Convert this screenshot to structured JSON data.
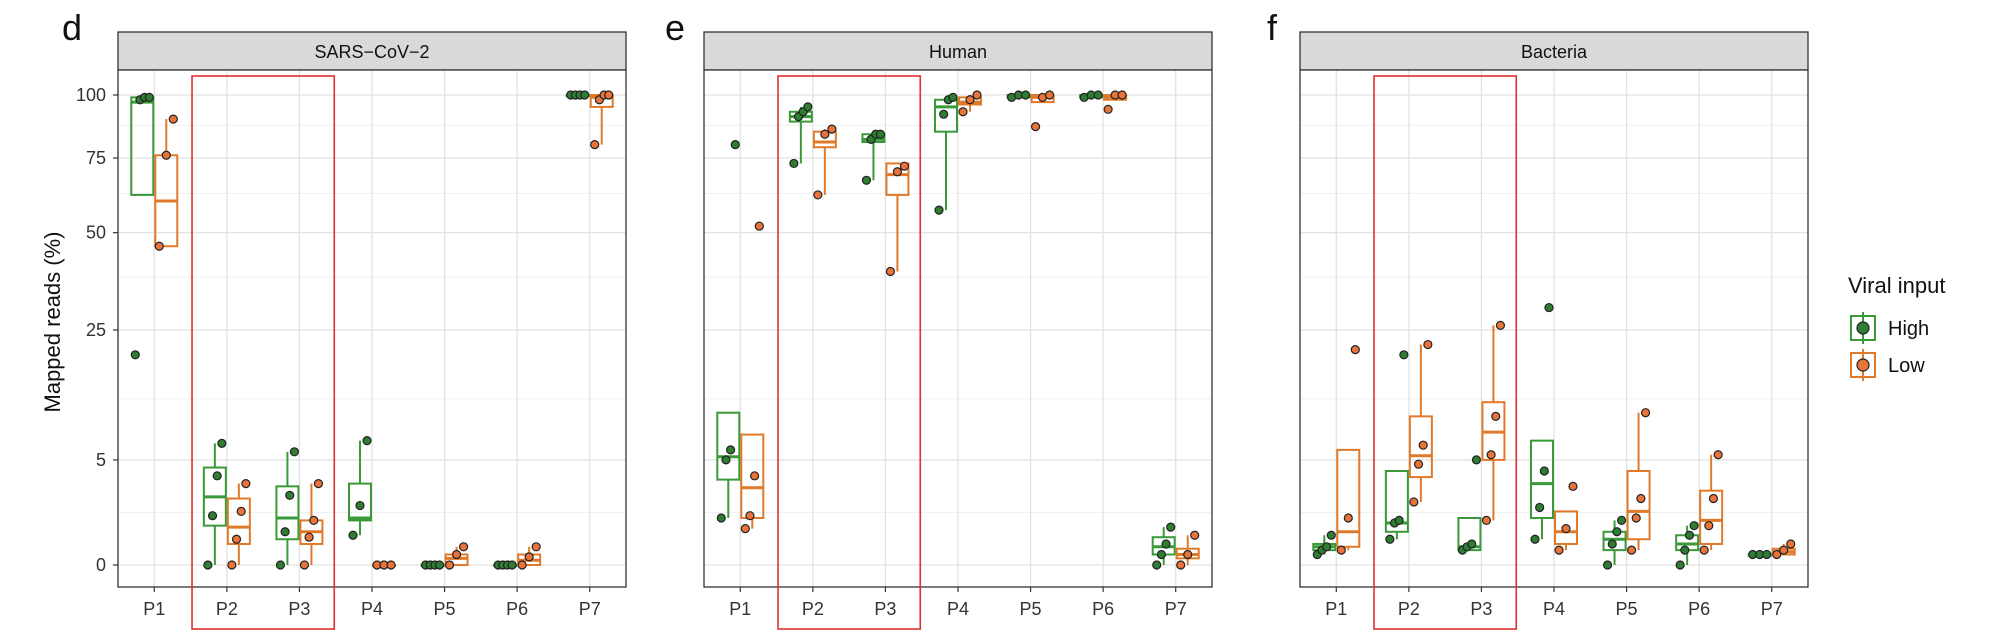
{
  "figure": {
    "ylabel": "Mapped reads (%)",
    "legend_title": "Viral input",
    "legend_placement": "right",
    "legend_items": [
      {
        "name": "High",
        "color": "#3a9a3a",
        "fill": "#2e7d32"
      },
      {
        "name": "Low",
        "color": "#e07a2a",
        "fill": "#e8743b"
      }
    ],
    "highlight_color": "#e03030",
    "highlight_categories": [
      "P2",
      "P3"
    ]
  },
  "chart_data": [
    {
      "type": "box",
      "panel_letter": "d",
      "title": "SARS−CoV−2",
      "categories": [
        "P1",
        "P2",
        "P3",
        "P4",
        "P5",
        "P6",
        "P7"
      ],
      "y_scale": "sqrt",
      "yticks": [
        0,
        5,
        25,
        50,
        75,
        100
      ],
      "ylim": [
        0,
        100
      ],
      "grid": true,
      "series": [
        {
          "name": "High",
          "boxes": [
            {
              "q1": 62,
              "median": 97,
              "q3": 99,
              "lo": 62,
              "hi": 99,
              "points": [
                20,
                98,
                99,
                99
              ]
            },
            {
              "q1": 0.7,
              "median": 2.1,
              "q3": 4.3,
              "lo": 0,
              "hi": 6.7,
              "points": [
                0,
                1.1,
                3.6,
                6.7
              ]
            },
            {
              "q1": 0.3,
              "median": 1.0,
              "q3": 2.8,
              "lo": 0,
              "hi": 5.8,
              "points": [
                0,
                0.5,
                2.2,
                5.8
              ]
            },
            {
              "q1": 0.9,
              "median": 1.0,
              "q3": 3.0,
              "lo": 0.4,
              "hi": 7.0,
              "points": [
                0.4,
                1.6,
                7.0
              ]
            },
            {
              "q1": 0,
              "median": 0,
              "q3": 0,
              "lo": 0,
              "hi": 0,
              "points": [
                0,
                0,
                0,
                0
              ]
            },
            {
              "q1": 0,
              "median": 0,
              "q3": 0,
              "lo": 0,
              "hi": 0,
              "points": [
                0,
                0,
                0,
                0
              ]
            },
            {
              "q1": 100,
              "median": 100,
              "q3": 100,
              "lo": 100,
              "hi": 100,
              "points": [
                100,
                100,
                100,
                100
              ]
            }
          ]
        },
        {
          "name": "Low",
          "boxes": [
            {
              "q1": 46,
              "median": 60,
              "q3": 76,
              "lo": 46,
              "hi": 90,
              "points": [
                46,
                76,
                90
              ]
            },
            {
              "q1": 0.2,
              "median": 0.65,
              "q3": 2.0,
              "lo": 0,
              "hi": 3.0,
              "points": [
                0,
                0.3,
                1.3,
                3.0
              ]
            },
            {
              "q1": 0.2,
              "median": 0.5,
              "q3": 0.9,
              "lo": 0,
              "hi": 3.0,
              "points": [
                0,
                0.35,
                0.9,
                3.0
              ]
            },
            {
              "q1": 0,
              "median": 0,
              "q3": 0,
              "lo": 0,
              "hi": 0,
              "points": [
                0,
                0,
                0
              ]
            },
            {
              "q1": 0,
              "median": 0.02,
              "q3": 0.05,
              "lo": 0,
              "hi": 0.15,
              "points": [
                0,
                0.05,
                0.15
              ]
            },
            {
              "q1": 0,
              "median": 0.01,
              "q3": 0.05,
              "lo": 0,
              "hi": 0.15,
              "points": [
                0,
                0.03,
                0.15
              ]
            },
            {
              "q1": 95,
              "median": 99,
              "q3": 100,
              "lo": 80,
              "hi": 100,
              "points": [
                80,
                98,
                100,
                100
              ]
            }
          ]
        }
      ]
    },
    {
      "type": "box",
      "panel_letter": "e",
      "title": "Human",
      "categories": [
        "P1",
        "P2",
        "P3",
        "P4",
        "P5",
        "P6",
        "P7"
      ],
      "y_scale": "sqrt",
      "yticks": [],
      "ylim": [
        0,
        100
      ],
      "grid": true,
      "series": [
        {
          "name": "High",
          "boxes": [
            {
              "q1": 3.3,
              "median": 5.3,
              "q3": 10.5,
              "lo": 1.0,
              "hi": 10.5,
              "points": [
                1.0,
                5.0,
                6.0,
                80
              ]
            },
            {
              "q1": 89,
              "median": 91,
              "q3": 93,
              "lo": 73,
              "hi": 95,
              "points": [
                73,
                91,
                93,
                95
              ]
            },
            {
              "q1": 81,
              "median": 82,
              "q3": 84,
              "lo": 67,
              "hi": 84,
              "points": [
                67,
                82,
                84,
                84
              ]
            },
            {
              "q1": 85,
              "median": 95,
              "q3": 98,
              "lo": 57,
              "hi": 99,
              "points": [
                57,
                92,
                98,
                99
              ]
            },
            {
              "q1": 99,
              "median": 99.5,
              "q3": 100,
              "lo": 99,
              "hi": 100,
              "points": [
                99,
                100,
                100
              ]
            },
            {
              "q1": 99,
              "median": 99.5,
              "q3": 100,
              "lo": 99,
              "hi": 100,
              "points": [
                99,
                100,
                100
              ]
            },
            {
              "q1": 0.05,
              "median": 0.15,
              "q3": 0.35,
              "lo": 0,
              "hi": 0.65,
              "points": [
                0,
                0.05,
                0.2,
                0.65
              ]
            }
          ]
        },
        {
          "name": "Low",
          "boxes": [
            {
              "q1": 1.0,
              "median": 2.7,
              "q3": 7.7,
              "lo": 0.6,
              "hi": 7.7,
              "points": [
                0.6,
                1.1,
                3.6,
                52
              ]
            },
            {
              "q1": 79,
              "median": 81,
              "q3": 85,
              "lo": 62,
              "hi": 86,
              "points": [
                62,
                84,
                86
              ]
            },
            {
              "q1": 62,
              "median": 69,
              "q3": 73,
              "lo": 39,
              "hi": 73,
              "points": [
                39,
                70,
                72
              ]
            },
            {
              "q1": 96,
              "median": 97,
              "q3": 99,
              "lo": 93,
              "hi": 100,
              "points": [
                93,
                98,
                100
              ]
            },
            {
              "q1": 97,
              "median": 99,
              "q3": 100,
              "lo": 97,
              "hi": 100,
              "points": [
                87,
                99,
                100
              ]
            },
            {
              "q1": 98,
              "median": 99,
              "q3": 100,
              "lo": 98,
              "hi": 100,
              "points": [
                94,
                100,
                100
              ]
            },
            {
              "q1": 0.02,
              "median": 0.05,
              "q3": 0.12,
              "lo": 0,
              "hi": 0.4,
              "points": [
                0,
                0.05,
                0.4
              ]
            }
          ]
        }
      ]
    },
    {
      "type": "box",
      "panel_letter": "f",
      "title": "Bacteria",
      "categories": [
        "P1",
        "P2",
        "P3",
        "P4",
        "P5",
        "P6",
        "P7"
      ],
      "y_scale": "sqrt",
      "yticks": [],
      "ylim": [
        0,
        100
      ],
      "grid": true,
      "series": [
        {
          "name": "High",
          "boxes": [
            {
              "q1": 0.1,
              "median": 0.15,
              "q3": 0.2,
              "lo": 0.05,
              "hi": 0.4,
              "points": [
                0.05,
                0.1,
                0.15,
                0.4
              ]
            },
            {
              "q1": 0.5,
              "median": 0.8,
              "q3": 4.0,
              "lo": 0.3,
              "hi": 4.0,
              "points": [
                0.3,
                0.8,
                0.9,
                20
              ]
            },
            {
              "q1": 0.1,
              "median": 0.15,
              "q3": 1.0,
              "lo": 0.1,
              "hi": 1.0,
              "points": [
                0.1,
                0.15,
                0.2,
                5.0
              ]
            },
            {
              "q1": 1.0,
              "median": 3.0,
              "q3": 7.0,
              "lo": 0.3,
              "hi": 7.0,
              "points": [
                0.3,
                1.5,
                4.0,
                30
              ]
            },
            {
              "q1": 0.1,
              "median": 0.3,
              "q3": 0.5,
              "lo": 0,
              "hi": 0.9,
              "points": [
                0,
                0.2,
                0.5,
                0.9
              ]
            },
            {
              "q1": 0.1,
              "median": 0.2,
              "q3": 0.4,
              "lo": 0,
              "hi": 0.7,
              "points": [
                0,
                0.1,
                0.4,
                0.7
              ]
            },
            {
              "q1": 0.05,
              "median": 0.05,
              "q3": 0.05,
              "lo": 0.05,
              "hi": 0.05,
              "points": [
                0.05,
                0.05,
                0.05
              ]
            }
          ]
        },
        {
          "name": "Low",
          "boxes": [
            {
              "q1": 0.15,
              "median": 0.5,
              "q3": 6.0,
              "lo": 0.1,
              "hi": 6.0,
              "points": [
                0.1,
                1.0,
                21
              ]
            },
            {
              "q1": 3.5,
              "median": 5.4,
              "q3": 10.0,
              "lo": 1.8,
              "hi": 22,
              "points": [
                1.8,
                4.6,
                6.5,
                22
              ]
            },
            {
              "q1": 5.0,
              "median": 8.0,
              "q3": 12.0,
              "lo": 0.9,
              "hi": 26,
              "points": [
                0.9,
                5.5,
                10.0,
                26
              ]
            },
            {
              "q1": 0.2,
              "median": 0.5,
              "q3": 1.3,
              "lo": 0.1,
              "hi": 1.3,
              "points": [
                0.1,
                0.6,
                2.8
              ]
            },
            {
              "q1": 0.3,
              "median": 1.3,
              "q3": 4.0,
              "lo": 0.1,
              "hi": 10.5,
              "points": [
                0.1,
                1.0,
                2.0,
                10.5
              ]
            },
            {
              "q1": 0.2,
              "median": 0.9,
              "q3": 2.5,
              "lo": 0.1,
              "hi": 5.5,
              "points": [
                0.1,
                0.7,
                2.0,
                5.5
              ]
            },
            {
              "q1": 0.05,
              "median": 0.08,
              "q3": 0.12,
              "lo": 0.05,
              "hi": 0.2,
              "points": [
                0.05,
                0.1,
                0.2
              ]
            }
          ]
        }
      ]
    }
  ]
}
